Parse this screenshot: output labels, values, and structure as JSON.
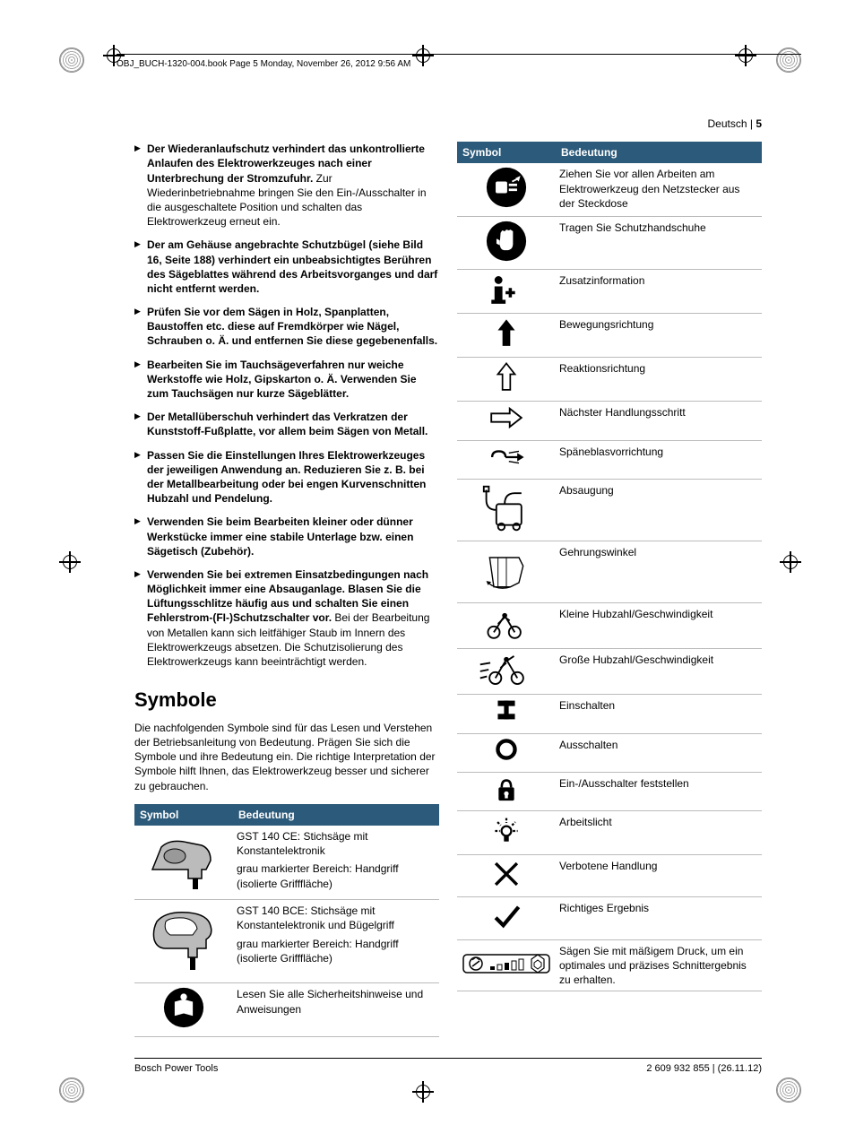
{
  "header_line": "OBJ_BUCH-1320-004.book  Page 5  Monday, November 26, 2012  9:56 AM",
  "page_head_lang": "Deutsch",
  "page_head_sep": " | ",
  "page_head_num": "5",
  "bullets": [
    {
      "bold": "Der Wiederanlaufschutz verhindert das unkontrollierte Anlaufen des Elektrowerkzeuges nach einer Unterbrechung der Stromzufuhr.",
      "reg": " Zur Wiederinbetriebnahme bringen Sie den Ein-/Ausschalter in die ausgeschaltete Position und schalten das Elektrowerkzeug erneut ein."
    },
    {
      "bold": "Der am Gehäuse angebrachte Schutzbügel (siehe Bild 16, Seite 188) verhindert ein unbeabsichtigtes Berühren des Sägeblattes während des Arbeitsvorganges und darf nicht entfernt werden.",
      "reg": ""
    },
    {
      "bold": "Prüfen Sie vor dem Sägen in Holz, Spanplatten, Baustoffen etc. diese auf Fremdkörper wie Nägel, Schrauben o. Ä. und entfernen Sie diese gegebenenfalls.",
      "reg": ""
    },
    {
      "bold": "Bearbeiten Sie im Tauchsägeverfahren nur weiche Werkstoffe wie Holz, Gipskarton o. Ä. Verwenden Sie zum Tauchsägen nur kurze Sägeblätter.",
      "reg": ""
    },
    {
      "bold": "Der Metallüberschuh verhindert das Verkratzen der Kunststoff-Fußplatte, vor allem beim Sägen von Metall.",
      "reg": ""
    },
    {
      "bold": "Passen Sie die Einstellungen Ihres Elektrowerkzeuges der jeweiligen Anwendung an. Reduzieren Sie z. B. bei der Metallbearbeitung oder bei engen Kurvenschnitten Hubzahl und Pendelung.",
      "reg": ""
    },
    {
      "bold": "Verwenden Sie beim Bearbeiten kleiner oder dünner Werkstücke immer eine stabile Unterlage bzw. einen Sägetisch (Zubehör).",
      "reg": ""
    },
    {
      "bold": "Verwenden Sie bei extremen Einsatzbedingungen nach Möglichkeit immer eine Absauganlage. Blasen Sie die Lüftungsschlitze häufig aus und schalten Sie einen Fehlerstrom-(FI-)Schutzschalter vor.",
      "reg": " Bei der Bearbeitung von Metallen kann sich leitfähiger Staub im Innern des Elektrowerkzeugs absetzen. Die Schutzisolierung des Elektrowerkzeugs kann beeinträchtigt werden."
    }
  ],
  "section_title": "Symbole",
  "section_intro": "Die nachfolgenden Symbole sind für das Lesen und Verstehen der Betriebsanleitung von Bedeutung. Prägen Sie sich die Symbole und ihre Bedeutung ein. Die richtige Interpretation der Symbole hilft Ihnen, das Elektrowerkzeug besser und sicherer zu gebrauchen.",
  "left_table": {
    "head_symbol": "Symbol",
    "head_meaning": "Bedeutung",
    "rows": [
      {
        "icon": "jigsaw1",
        "line1": "GST 140 CE: Stichsäge mit Konstantelektronik",
        "line2": "grau markierter Bereich: Handgriff (isolierte Grifffläche)"
      },
      {
        "icon": "jigsaw2",
        "line1": "GST 140 BCE: Stichsäge mit Konstantelektronik und Bügelgriff",
        "line2": "grau markierter Bereich: Handgriff (isolierte Grifffläche)"
      },
      {
        "icon": "read",
        "line1": "Lesen Sie alle Sicherheitshinweise und Anweisungen",
        "line2": ""
      }
    ]
  },
  "right_table": {
    "head_symbol": "Symbol",
    "head_meaning": "Bedeutung",
    "rows": [
      {
        "icon": "plug",
        "text": "Ziehen Sie vor allen Arbeiten am Elektrowerkzeug den Netzstecker aus der Steckdose"
      },
      {
        "icon": "gloves",
        "text": "Tragen Sie Schutzhandschuhe"
      },
      {
        "icon": "info",
        "text": "Zusatzinformation"
      },
      {
        "icon": "arrowup",
        "text": "Bewegungsrichtung"
      },
      {
        "icon": "reaction",
        "text": "Reaktionsrichtung"
      },
      {
        "icon": "next",
        "text": "Nächster Handlungsschritt"
      },
      {
        "icon": "blow",
        "text": "Späneblasvorrichtung"
      },
      {
        "icon": "vacuum",
        "text": "Absaugung"
      },
      {
        "icon": "miter",
        "text": "Gehrungswinkel"
      },
      {
        "icon": "slow",
        "text": "Kleine Hubzahl/Geschwindigkeit"
      },
      {
        "icon": "fast",
        "text": "Große Hubzahl/Geschwindigkeit"
      },
      {
        "icon": "on",
        "text": "Einschalten"
      },
      {
        "icon": "off",
        "text": "Ausschalten"
      },
      {
        "icon": "lock",
        "text": "Ein-/Ausschalter feststellen"
      },
      {
        "icon": "light",
        "text": "Arbeitslicht"
      },
      {
        "icon": "cross",
        "text": "Verbotene Handlung"
      },
      {
        "icon": "check",
        "text": "Richtiges Ergebnis"
      },
      {
        "icon": "gauge",
        "text": "Sägen Sie mit mäßigem Druck, um ein optimales und präzises Schnittergebnis zu erhalten."
      }
    ]
  },
  "footer_left": "Bosch Power Tools",
  "footer_right": "2 609 932 855 | (26.11.12)"
}
